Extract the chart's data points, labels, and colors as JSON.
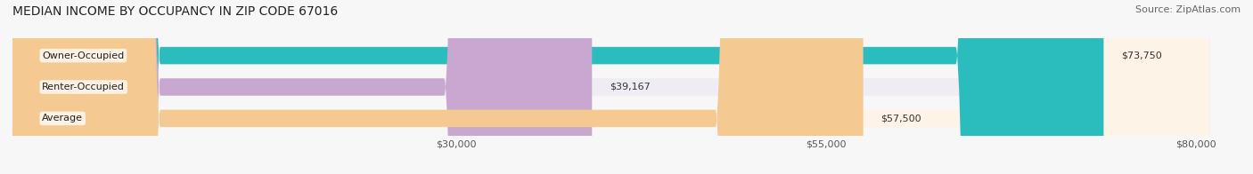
{
  "title": "MEDIAN INCOME BY OCCUPANCY IN ZIP CODE 67016",
  "source": "Source: ZipAtlas.com",
  "categories": [
    "Owner-Occupied",
    "Renter-Occupied",
    "Average"
  ],
  "values": [
    73750,
    39167,
    57500
  ],
  "value_labels": [
    "$73,750",
    "$39,167",
    "$57,500"
  ],
  "bar_colors": [
    "#2bbcbe",
    "#c8a8d0",
    "#f5c992"
  ],
  "bar_bg_colors": [
    "#e8f0f0",
    "#f0ecf4",
    "#fdf3e7"
  ],
  "x_ticks": [
    30000,
    55000,
    80000
  ],
  "x_tick_labels": [
    "$30,000",
    "$55,000",
    "$80,000"
  ],
  "xlim": [
    0,
    83000
  ],
  "figsize": [
    14.06,
    1.96
  ],
  "dpi": 100,
  "title_fontsize": 10,
  "source_fontsize": 8,
  "bar_label_fontsize": 8,
  "value_label_fontsize": 8,
  "tick_fontsize": 8
}
